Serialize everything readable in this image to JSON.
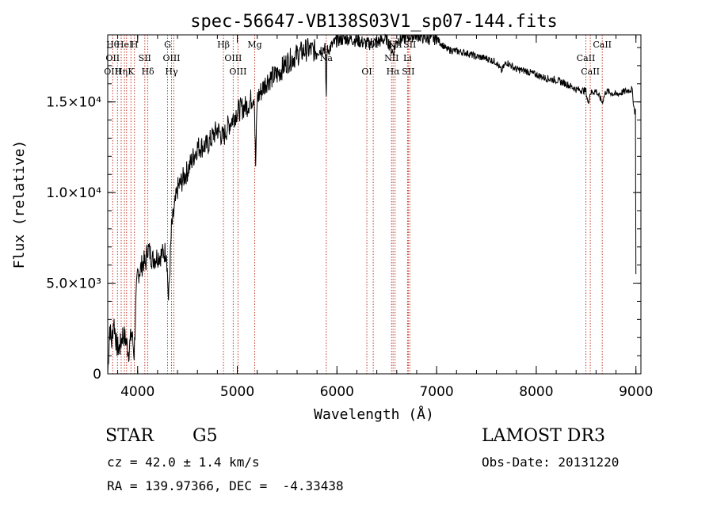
{
  "chart_data": {
    "type": "line",
    "title": "spec-56647-VB138S03V1_sp07-144.fits",
    "xlabel": "Wavelength (Å)",
    "ylabel": "Flux (relative)",
    "xlim": [
      3700,
      9050
    ],
    "ylim": [
      0,
      18700
    ],
    "x_ticks": [
      {
        "value": 4000,
        "label": "4000"
      },
      {
        "value": 5000,
        "label": "5000"
      },
      {
        "value": 6000,
        "label": "6000"
      },
      {
        "value": 7000,
        "label": "7000"
      },
      {
        "value": 8000,
        "label": "8000"
      },
      {
        "value": 9000,
        "label": "9000"
      }
    ],
    "y_ticks": [
      {
        "value": 0,
        "label": "0"
      },
      {
        "value": 5000,
        "label": "5.0×10³"
      },
      {
        "value": 10000,
        "label": "1.0×10⁴"
      },
      {
        "value": 15000,
        "label": "1.5×10⁴"
      }
    ],
    "series": [
      {
        "name": "flux",
        "x": [
          3700,
          3720,
          3740,
          3760,
          3790,
          3820,
          3850,
          3880,
          3910,
          3940,
          3965,
          3985,
          4000,
          4030,
          4060,
          4080,
          4100,
          4150,
          4200,
          4250,
          4290,
          4310,
          4340,
          4400,
          4500,
          4600,
          4700,
          4800,
          4860,
          4900,
          5000,
          5100,
          5170,
          5184,
          5200,
          5300,
          5400,
          5500,
          5600,
          5700,
          5800,
          5880,
          5893,
          5900,
          6000,
          6100,
          6200,
          6300,
          6400,
          6500,
          6563,
          6600,
          6700,
          6800,
          6900,
          7000,
          7100,
          7200,
          7300,
          7400,
          7500,
          7600,
          7650,
          7700,
          7800,
          7900,
          8000,
          8100,
          8200,
          8300,
          8400,
          8498,
          8520,
          8542,
          8600,
          8662,
          8700,
          8800,
          8900,
          8960,
          8985,
          8995,
          9000
        ],
        "y": [
          0,
          2600,
          1700,
          3000,
          1500,
          1400,
          2200,
          1900,
          1200,
          2300,
          1100,
          4200,
          5500,
          5800,
          6200,
          6000,
          7000,
          6300,
          6500,
          6600,
          6800,
          4000,
          8000,
          10200,
          11200,
          12500,
          12600,
          13500,
          13000,
          13600,
          14500,
          14800,
          15400,
          11500,
          15200,
          16200,
          16500,
          17200,
          17600,
          17900,
          17800,
          18000,
          15300,
          17800,
          18400,
          18500,
          18400,
          18200,
          18300,
          18500,
          17700,
          18400,
          18600,
          18700,
          18500,
          18500,
          17900,
          17800,
          17700,
          17500,
          17400,
          17200,
          16700,
          17200,
          16800,
          16700,
          16500,
          16300,
          16200,
          16000,
          15700,
          15600,
          14900,
          15500,
          15600,
          15000,
          15600,
          15400,
          15600,
          15700,
          14500,
          14500,
          5500
        ]
      }
    ],
    "lines": [
      {
        "x": 3750,
        "labels": [
          "Hθ",
          "OII",
          "OIII"
        ]
      },
      {
        "x": 3798,
        "labels": []
      },
      {
        "x": 3835,
        "labels": [
          "Hη"
        ]
      },
      {
        "x": 3868,
        "labels": [
          "HeI"
        ]
      },
      {
        "x": 3889,
        "labels": []
      },
      {
        "x": 3933,
        "labels": [
          "K"
        ]
      },
      {
        "x": 3968,
        "labels": [
          "H"
        ]
      },
      {
        "x": 4072,
        "labels": [
          "SII"
        ]
      },
      {
        "x": 4102,
        "labels": [
          "Hδ"
        ]
      },
      {
        "x": 4300,
        "labels": [
          "G"
        ]
      },
      {
        "x": 4340,
        "labels": [
          "OIII",
          "Hγ"
        ]
      },
      {
        "x": 4363,
        "labels": []
      },
      {
        "x": 4861,
        "labels": [
          "Hβ"
        ]
      },
      {
        "x": 4959,
        "labels": [
          "OIII"
        ]
      },
      {
        "x": 5007,
        "labels": [
          "OIII"
        ]
      },
      {
        "x": 5175,
        "labels": [
          "Mg"
        ]
      },
      {
        "x": 5893,
        "labels": [
          "Na"
        ]
      },
      {
        "x": 6300,
        "labels": [
          "OI"
        ]
      },
      {
        "x": 6364,
        "labels": [
          "OI"
        ]
      },
      {
        "x": 6548,
        "labels": [
          "NII"
        ]
      },
      {
        "x": 6563,
        "labels": [
          "Hα"
        ]
      },
      {
        "x": 6583,
        "labels": [
          "NII"
        ]
      },
      {
        "x": 6708,
        "labels": [
          "Li"
        ]
      },
      {
        "x": 6716,
        "labels": [
          "SII"
        ]
      },
      {
        "x": 6731,
        "labels": [
          "SII"
        ]
      },
      {
        "x": 8498,
        "labels": [
          "CaII"
        ]
      },
      {
        "x": 8542,
        "labels": [
          "CaII"
        ]
      },
      {
        "x": 8662,
        "labels": [
          "CaII"
        ]
      }
    ]
  },
  "info": {
    "class_label": "STAR",
    "subclass": "G5",
    "survey": "LAMOST DR3",
    "cz": "cz = 42.0 ± 1.4 km/s",
    "obs_date": "Obs-Date: 20131220",
    "coords": "RA = 139.97366, DEC =  -4.33438"
  }
}
